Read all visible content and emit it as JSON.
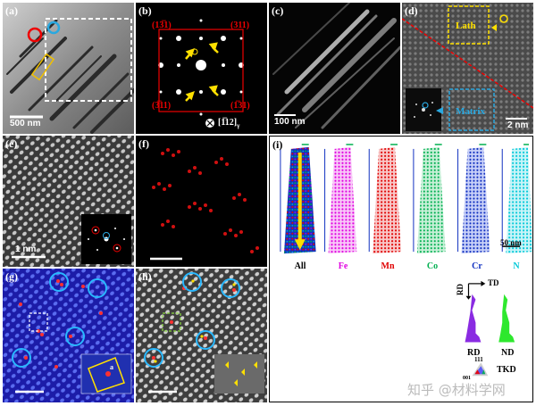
{
  "panels": {
    "a": {
      "label": "(a)",
      "scale": "500 nm"
    },
    "b": {
      "label": "(b)",
      "spot_tl": "(13̅1)",
      "spot_tr": "(311)",
      "spot_bl": "(3̅11)",
      "spot_br": "(1̅31)",
      "zone_axis": "[1̅12]",
      "zone_sub": "γ"
    },
    "c": {
      "label": "(c)",
      "scale": "100 nm"
    },
    "d": {
      "label": "(d)",
      "lath": "Lath",
      "matrix": "Matrix",
      "scale": "2 nm"
    },
    "e": {
      "label": "(e)",
      "scale": "1 nm"
    },
    "f": {
      "label": "(f)"
    },
    "g": {
      "label": "(g)",
      "inset_text": "a"
    },
    "h": {
      "label": "(h)"
    },
    "i": {
      "label": "(i)",
      "scale": "50 nm",
      "atoms": [
        "All",
        "Fe",
        "Mn",
        "Co",
        "Cr",
        "N"
      ],
      "atom_colors": [
        "#000000",
        "#e000e0",
        "#e00000",
        "#00b050",
        "#1030c0",
        "#00c8d8"
      ],
      "axis_top": "TD",
      "axis_left": "RD",
      "hist_left": "RD",
      "hist_right": "ND",
      "hist_left_color": "#8a2be2",
      "hist_right_color": "#2ee82e",
      "ipf_label": "111",
      "ipf_sub": "001",
      "tkd": "TKD"
    }
  },
  "watermark": "知乎 @材料学网"
}
